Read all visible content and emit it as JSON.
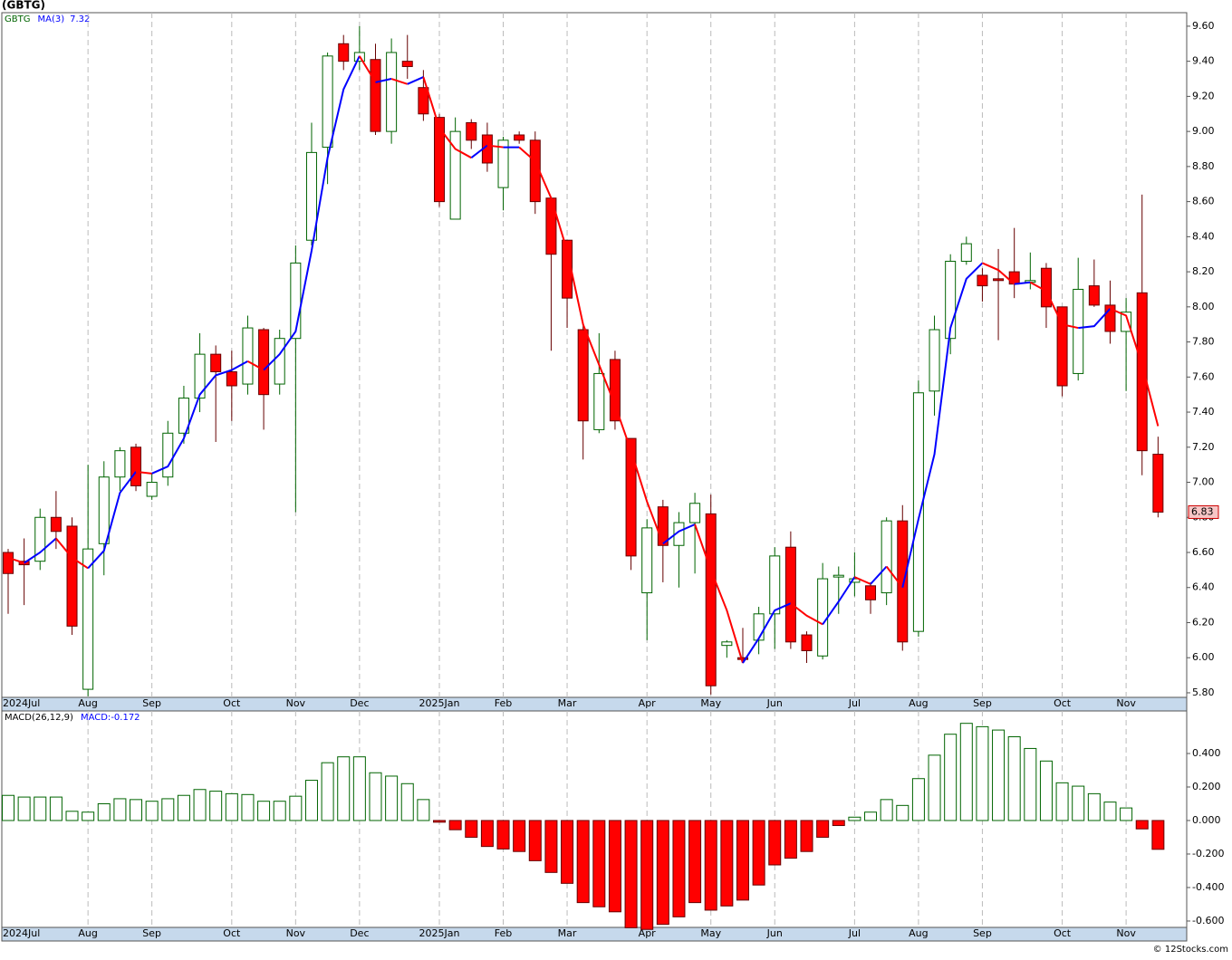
{
  "chart_data": [
    {
      "type": "candlestick",
      "title": "(GBTG)",
      "symbol": "GBTG",
      "categories": [
        "2024Jul",
        null,
        null,
        null,
        null,
        "Aug",
        null,
        null,
        null,
        "Sep",
        null,
        null,
        null,
        null,
        "Oct",
        null,
        null,
        null,
        "Nov",
        null,
        null,
        null,
        "Dec",
        null,
        null,
        null,
        null,
        "2025Jan",
        null,
        null,
        null,
        "Feb",
        null,
        null,
        null,
        "Mar",
        null,
        null,
        null,
        null,
        "Apr",
        null,
        null,
        null,
        "May",
        null,
        null,
        null,
        "Jun",
        null,
        null,
        null,
        null,
        "Jul",
        null,
        null,
        null,
        "Aug",
        null,
        null,
        null,
        "Sep",
        null,
        null,
        null,
        null,
        "Oct",
        null,
        null,
        null,
        "Nov",
        null,
        null
      ],
      "open": [
        6.6,
        6.55,
        6.55,
        6.8,
        6.75,
        5.82,
        6.65,
        7.03,
        7.2,
        6.92,
        7.03,
        7.28,
        7.48,
        7.73,
        7.63,
        7.56,
        7.87,
        7.56,
        7.82,
        8.38,
        8.91,
        9.5,
        9.4,
        9.41,
        9.0,
        9.4,
        9.25,
        9.08,
        8.5,
        9.05,
        8.98,
        8.68,
        8.98,
        8.95,
        8.62,
        8.38,
        7.87,
        7.3,
        7.7,
        7.25,
        6.37,
        6.86,
        6.64,
        6.77,
        6.82,
        6.07,
        6.0,
        6.1,
        6.25,
        6.63,
        6.13,
        6.01,
        6.46,
        6.43,
        6.41,
        6.37,
        6.78,
        6.15,
        7.52,
        7.82,
        8.26,
        8.18,
        8.16,
        8.2,
        8.14,
        8.22,
        8.0,
        7.62,
        8.12,
        8.01,
        7.86,
        8.08,
        7.16
      ],
      "high": [
        6.62,
        6.68,
        6.85,
        6.95,
        6.8,
        7.1,
        7.12,
        7.2,
        7.22,
        7.05,
        7.35,
        7.55,
        7.85,
        7.78,
        7.75,
        7.95,
        7.88,
        7.87,
        8.35,
        9.05,
        9.45,
        9.55,
        9.6,
        9.5,
        9.53,
        9.55,
        9.35,
        9.1,
        9.08,
        9.07,
        9.05,
        8.97,
        9.0,
        9.0,
        8.62,
        8.38,
        7.9,
        7.85,
        7.75,
        7.25,
        6.79,
        6.9,
        6.83,
        6.94,
        6.93,
        6.1,
        6.17,
        6.29,
        6.63,
        6.72,
        6.15,
        6.54,
        6.52,
        6.6,
        6.43,
        6.8,
        6.87,
        7.58,
        7.95,
        8.3,
        8.4,
        8.22,
        8.33,
        8.45,
        8.31,
        8.25,
        8.0,
        8.28,
        8.27,
        8.15,
        8.05,
        8.64,
        7.26
      ],
      "low": [
        6.25,
        6.3,
        6.5,
        6.62,
        6.13,
        5.78,
        6.47,
        6.95,
        6.95,
        6.9,
        6.98,
        7.22,
        7.4,
        7.23,
        7.35,
        7.5,
        7.3,
        7.5,
        6.83,
        8.35,
        8.7,
        9.35,
        9.35,
        8.98,
        8.93,
        9.3,
        9.06,
        8.57,
        8.5,
        8.9,
        8.77,
        8.55,
        8.93,
        8.53,
        7.75,
        7.88,
        7.13,
        7.28,
        7.3,
        6.5,
        6.1,
        6.43,
        6.4,
        6.48,
        5.79,
        6.0,
        5.98,
        6.02,
        6.05,
        6.05,
        5.97,
        5.99,
        6.25,
        6.35,
        6.25,
        6.3,
        6.04,
        6.12,
        7.38,
        7.73,
        8.24,
        8.03,
        7.81,
        8.05,
        8.1,
        7.88,
        7.49,
        7.58,
        8.0,
        7.79,
        7.52,
        7.04,
        6.8
      ],
      "close": [
        6.48,
        6.53,
        6.8,
        6.72,
        6.18,
        6.62,
        7.03,
        7.18,
        6.98,
        7.0,
        7.28,
        7.48,
        7.73,
        7.63,
        7.55,
        7.88,
        7.5,
        7.82,
        8.25,
        8.88,
        9.43,
        9.4,
        9.45,
        9.0,
        9.45,
        9.37,
        9.1,
        8.6,
        9.0,
        8.95,
        8.82,
        8.95,
        8.95,
        8.6,
        8.3,
        8.05,
        7.35,
        7.62,
        7.35,
        6.58,
        6.74,
        6.64,
        6.77,
        6.88,
        5.84,
        6.09,
        5.99,
        6.25,
        6.58,
        6.09,
        6.04,
        6.45,
        6.47,
        6.45,
        6.33,
        6.78,
        6.09,
        7.51,
        7.87,
        8.26,
        8.36,
        8.12,
        8.15,
        8.13,
        8.15,
        8.0,
        7.55,
        8.1,
        8.01,
        7.86,
        7.97,
        7.18,
        6.83
      ],
      "up_color": "#006400",
      "down_color": "#ff0000",
      "series": [
        {
          "name": "MA(3)",
          "color": "#0000ff",
          "up_color": "#0000ff",
          "down_color": "#ff0000",
          "values": [
            6.57,
            6.54,
            6.6,
            6.68,
            6.57,
            6.51,
            6.61,
            6.94,
            7.06,
            7.05,
            7.09,
            7.25,
            7.5,
            7.61,
            7.64,
            7.69,
            7.64,
            7.73,
            7.86,
            8.32,
            8.85,
            9.24,
            9.43,
            9.28,
            9.3,
            9.27,
            9.31,
            9.02,
            8.9,
            8.85,
            8.92,
            8.91,
            8.91,
            8.83,
            8.62,
            8.32,
            7.9,
            7.67,
            7.44,
            7.18,
            6.89,
            6.65,
            6.72,
            6.76,
            6.5,
            6.27,
            5.97,
            6.11,
            6.27,
            6.31,
            6.24,
            6.19,
            6.32,
            6.46,
            6.42,
            6.52,
            6.4,
            6.79,
            7.16,
            7.88,
            8.16,
            8.25,
            8.21,
            8.13,
            8.14,
            8.09,
            7.9,
            7.88,
            7.89,
            7.99,
            7.95,
            7.67,
            7.32
          ]
        }
      ],
      "ylim": [
        5.774,
        9.677
      ],
      "yticks": [
        {
          "value": 5.8,
          "label": "5.80"
        },
        {
          "value": 6.0,
          "label": "6.00"
        },
        {
          "value": 6.2,
          "label": "6.20"
        },
        {
          "value": 6.4,
          "label": "6.40"
        },
        {
          "value": 6.6,
          "label": "6.60"
        },
        {
          "value": 6.8,
          "label": "6.80"
        },
        {
          "value": 7.0,
          "label": "7.00"
        },
        {
          "value": 7.2,
          "label": "7.20"
        },
        {
          "value": 7.4,
          "label": "7.40"
        },
        {
          "value": 7.6,
          "label": "7.60"
        },
        {
          "value": 7.8,
          "label": "7.80"
        },
        {
          "value": 8.0,
          "label": "8.00"
        },
        {
          "value": 8.2,
          "label": "8.20"
        },
        {
          "value": 8.4,
          "label": "8.40"
        },
        {
          "value": 8.6,
          "label": "8.60"
        },
        {
          "value": 8.8,
          "label": "8.80"
        },
        {
          "value": 9.0,
          "label": "9.00"
        },
        {
          "value": 9.2,
          "label": "9.20"
        },
        {
          "value": 9.4,
          "label": "9.40"
        },
        {
          "value": 9.6,
          "label": "9.60"
        }
      ],
      "grid": true
    },
    {
      "type": "bar",
      "title": "MACD(26,12,9)",
      "value_name": "MACD:",
      "color": "#0000ff",
      "categories": [
        "2024Jul",
        null,
        null,
        null,
        null,
        "Aug",
        null,
        null,
        null,
        "Sep",
        null,
        null,
        null,
        null,
        "Oct",
        null,
        null,
        null,
        "Nov",
        null,
        null,
        null,
        "Dec",
        null,
        null,
        null,
        null,
        "2025Jan",
        null,
        null,
        null,
        "Feb",
        null,
        null,
        null,
        "Mar",
        null,
        null,
        null,
        null,
        "Apr",
        null,
        null,
        null,
        "May",
        null,
        null,
        null,
        "Jun",
        null,
        null,
        null,
        null,
        "Jul",
        null,
        null,
        null,
        "Aug",
        null,
        null,
        null,
        "Sep",
        null,
        null,
        null,
        null,
        "Oct",
        null,
        null,
        null,
        "Nov",
        null,
        null
      ],
      "values": [
        0.15,
        0.14,
        0.14,
        0.14,
        0.055,
        0.05,
        0.1,
        0.13,
        0.125,
        0.115,
        0.13,
        0.15,
        0.185,
        0.175,
        0.16,
        0.155,
        0.115,
        0.115,
        0.145,
        0.24,
        0.345,
        0.38,
        0.38,
        0.285,
        0.265,
        0.22,
        0.125,
        -0.01,
        -0.055,
        -0.1,
        -0.155,
        -0.17,
        -0.185,
        -0.24,
        -0.31,
        -0.375,
        -0.49,
        -0.515,
        -0.545,
        -0.64,
        -0.65,
        -0.62,
        -0.575,
        -0.49,
        -0.535,
        -0.51,
        -0.475,
        -0.385,
        -0.265,
        -0.225,
        -0.185,
        -0.1,
        -0.03,
        0.02,
        0.05,
        0.125,
        0.09,
        0.25,
        0.39,
        0.515,
        0.58,
        0.56,
        0.54,
        0.5,
        0.43,
        0.355,
        0.225,
        0.205,
        0.16,
        0.11,
        0.075,
        -0.05,
        -0.172
      ],
      "up_color": "#006400",
      "down_color": "#ff0000",
      "ylim": [
        -0.638,
        0.654
      ],
      "yticks": [
        {
          "value": -0.6,
          "label": "-0.600"
        },
        {
          "value": -0.4,
          "label": "-0.400"
        },
        {
          "value": -0.2,
          "label": "-0.200"
        },
        {
          "value": 0,
          "label": "0.000"
        },
        {
          "value": 0.2,
          "label": "0.200"
        },
        {
          "value": 0.4,
          "label": "0.400"
        }
      ],
      "grid": true
    }
  ],
  "credit": "© 12Stocks.com"
}
